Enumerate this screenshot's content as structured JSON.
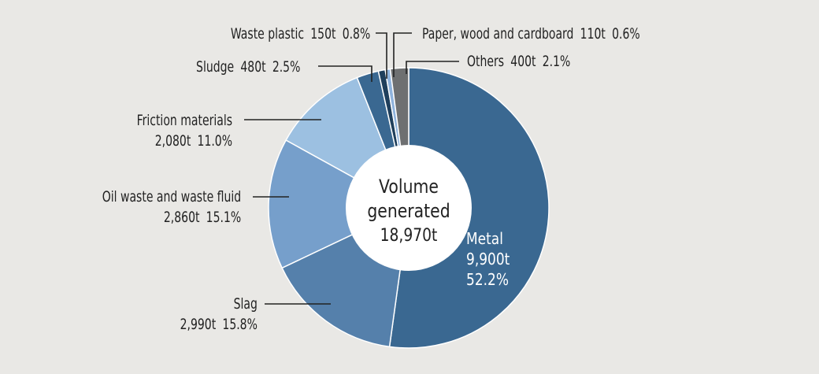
{
  "chart_data": {
    "type": "pie",
    "variant": "donut",
    "title": "",
    "center_label": {
      "line1": "Volume",
      "line2": "generated",
      "total": "18,970t"
    },
    "unit": "t",
    "total": 18970,
    "categories": [
      "Metal",
      "Slag",
      "Oil waste and waste fluid",
      "Friction materials",
      "Sludge",
      "Waste plastic",
      "Paper, wood and cardboard",
      "Others"
    ],
    "values": [
      9900,
      2990,
      2860,
      2080,
      480,
      150,
      110,
      400
    ],
    "percentages": [
      52.2,
      15.8,
      15.1,
      11.0,
      2.5,
      0.8,
      0.6,
      2.1
    ],
    "colors": [
      "#3a6891",
      "#5580ab",
      "#769fcb",
      "#9cc0e1",
      "#3a6891",
      "#1f3f5c",
      "#8fb3dc",
      "#6e7071"
    ],
    "start_angle_deg": 0,
    "direction": "clockwise"
  },
  "labels": {
    "metal": {
      "name": "Metal",
      "value": "9,900t",
      "pct": "52.2%"
    },
    "slag": {
      "name": "Slag",
      "value": "2,990t",
      "pct": "15.8%"
    },
    "oil": {
      "name": "Oil waste and waste fluid",
      "value": "2,860t",
      "pct": "15.1%"
    },
    "friction": {
      "name": "Friction materials",
      "value": "2,080t",
      "pct": "11.0%"
    },
    "sludge": {
      "name": "Sludge",
      "value": "480t",
      "pct": "2.5%"
    },
    "plastic": {
      "name": "Waste plastic",
      "value": "150t",
      "pct": "0.8%"
    },
    "paper": {
      "name": "Paper, wood and cardboard",
      "value": "110t",
      "pct": "0.6%"
    },
    "others": {
      "name": "Others",
      "value": "400t",
      "pct": "2.1%"
    }
  },
  "background_color": "#e9e8e5"
}
